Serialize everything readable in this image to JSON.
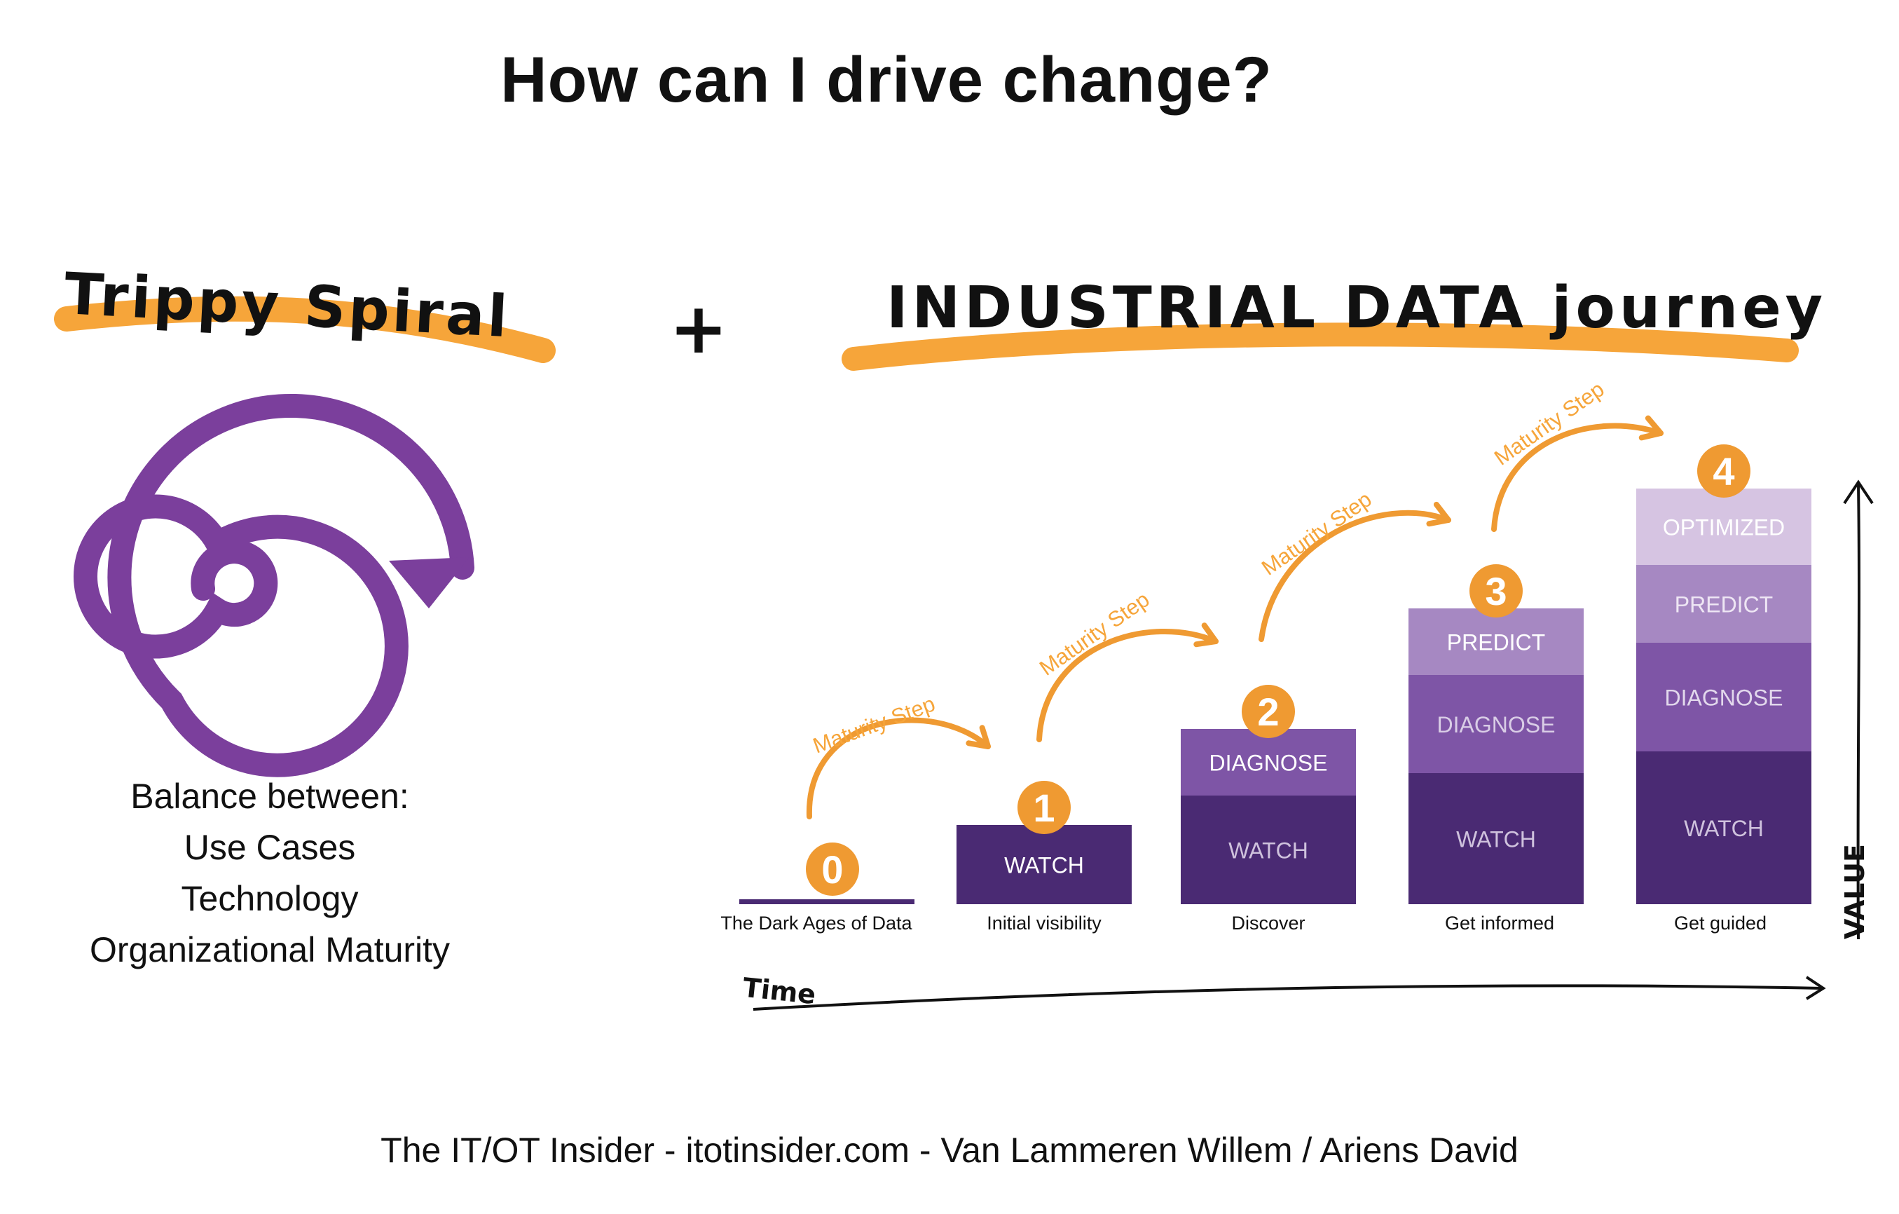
{
  "title": "How can I drive change?",
  "left_section": {
    "heading": "Trippy Spiral",
    "balance_lines": [
      "Balance between:",
      "Use Cases",
      "Technology",
      "Organizational Maturity"
    ]
  },
  "plus": "+",
  "right_section": {
    "heading": "INDUSTRIAL DATA journey",
    "step_label": "Maturity Step",
    "stages": [
      {
        "number": "0",
        "label": "The Dark Ages of Data",
        "levels": []
      },
      {
        "number": "1",
        "label": "Initial visibility",
        "levels": [
          "WATCH"
        ]
      },
      {
        "number": "2",
        "label": "Discover",
        "levels": [
          "WATCH",
          "DIAGNOSE"
        ]
      },
      {
        "number": "3",
        "label": "Get informed",
        "levels": [
          "WATCH",
          "DIAGNOSE",
          "PREDICT"
        ]
      },
      {
        "number": "4",
        "label": "Get guided",
        "levels": [
          "WATCH",
          "DIAGNOSE",
          "PREDICT",
          "OPTIMIZED"
        ]
      }
    ],
    "x_axis_label": "Time",
    "y_axis_label": "VALUE"
  },
  "footer": "The IT/OT Insider - itotinsider.com - Van Lammeren Willem / Ariens David",
  "colors": {
    "orange": "#F6A53A",
    "badge_orange": "#EF9A32",
    "purple_dark": "#4A2A73",
    "purple_mid": "#7E55A6",
    "purple_light": "#A688C2",
    "purple_pale": "#D6C4E2",
    "spiral": "#7B3F9C"
  }
}
